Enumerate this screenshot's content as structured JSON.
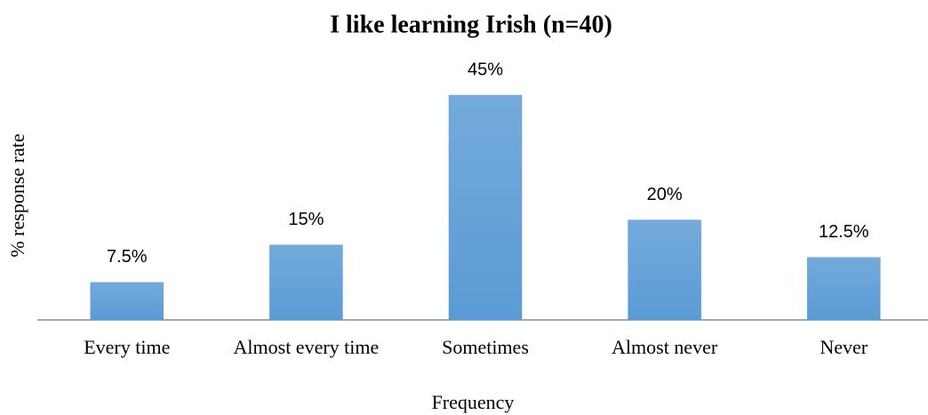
{
  "chart_data": {
    "type": "bar",
    "title": "I like learning Irish (n=40)",
    "x_label": "Frequency",
    "y_label": "% response rate",
    "categories": [
      "Every time",
      "Almost every time",
      "Sometimes",
      "Almost never",
      "Never"
    ],
    "values": [
      7.5,
      15,
      45,
      20,
      12.5
    ],
    "value_labels": [
      "7.5%",
      "15%",
      "45%",
      "20%",
      "12.5%"
    ],
    "color": "#5b9bd5",
    "ylim": [
      0,
      50
    ]
  }
}
